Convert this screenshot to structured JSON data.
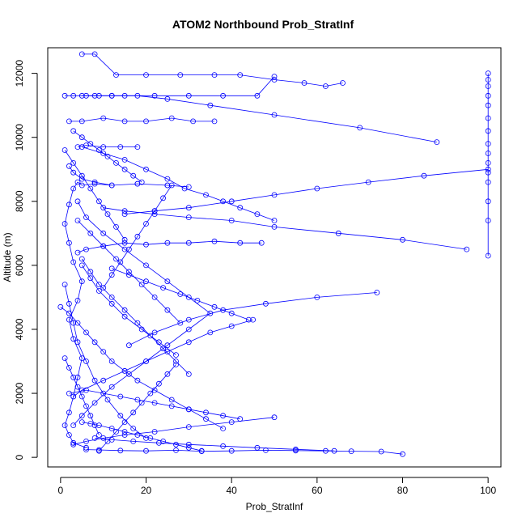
{
  "chart_data": {
    "type": "scatter",
    "title": "ATOM2 Northbound Prob_StratInf",
    "xlabel": "Prob_StratInf",
    "ylabel": "Altitude (m)",
    "xlim": [
      -3,
      103
    ],
    "ylim": [
      -300,
      12800
    ],
    "x_ticks": [
      0,
      20,
      40,
      60,
      80,
      100
    ],
    "y_ticks": [
      0,
      2000,
      4000,
      6000,
      8000,
      10000,
      12000
    ],
    "grid": false,
    "legend": "none",
    "color": "#0000ff",
    "marker": "open-circle",
    "connected": true,
    "series": [
      {
        "x": [
          80,
          75,
          68,
          62,
          55,
          48,
          40,
          33,
          27,
          20,
          14,
          9,
          6
        ],
        "y": [
          100,
          180,
          190,
          200,
          210,
          220,
          200,
          190,
          220,
          200,
          210,
          230,
          240
        ]
      },
      {
        "x": [
          6,
          3,
          2,
          1,
          2,
          3,
          4,
          5,
          3,
          2,
          4,
          5,
          3,
          2,
          1,
          2,
          3,
          4,
          5,
          8,
          12,
          18,
          25,
          30,
          25,
          18,
          12,
          8,
          5,
          3,
          2
        ],
        "y": [
          300,
          450,
          700,
          1000,
          1400,
          1900,
          2500,
          3100,
          3700,
          4300,
          4900,
          5500,
          6100,
          6700,
          7300,
          7900,
          8400,
          8600,
          8500,
          8550,
          8500,
          8550,
          8500,
          8450,
          8500,
          8550,
          8500,
          8600,
          8700,
          8900,
          9100
        ]
      },
      {
        "x": [
          3,
          5,
          8,
          12,
          16,
          20,
          25,
          30,
          35,
          30,
          25,
          20,
          15,
          10,
          6,
          4
        ],
        "y": [
          1000,
          1300,
          1700,
          2200,
          2600,
          3000,
          3500,
          4000,
          4500,
          5000,
          5500,
          6000,
          6500,
          7000,
          7500,
          8000
        ]
      },
      {
        "x": [
          5,
          10,
          15,
          20,
          25,
          29,
          34,
          38,
          42,
          46,
          50
        ],
        "y": [
          9700,
          9500,
          9300,
          9000,
          8700,
          8400,
          8200,
          8000,
          7800,
          7600,
          7400
        ]
      },
      {
        "x": [
          100,
          100,
          100,
          100,
          100,
          100,
          100,
          100,
          100,
          100,
          100,
          100,
          100,
          100,
          100
        ],
        "y": [
          6300,
          7400,
          8000,
          8600,
          8900,
          9200,
          9500,
          9800,
          10200,
          10600,
          11000,
          11300,
          11600,
          11800,
          12000
        ]
      },
      {
        "x": [
          1,
          3,
          6,
          9,
          12,
          15,
          22,
          30,
          38,
          46,
          50
        ],
        "y": [
          11300,
          11300,
          11300,
          11300,
          11300,
          11300,
          11300,
          11300,
          11300,
          11300,
          11900
        ]
      },
      {
        "x": [
          5,
          8,
          13,
          20,
          28,
          36,
          42,
          50,
          57,
          62,
          66
        ],
        "y": [
          12600,
          12600,
          11950,
          11950,
          11950,
          11950,
          11950,
          11800,
          11700,
          11600,
          11700
        ]
      },
      {
        "x": [
          2,
          5,
          10,
          15,
          20,
          26,
          31,
          36
        ],
        "y": [
          10500,
          10500,
          10600,
          10500,
          10500,
          10600,
          10500,
          10500
        ]
      },
      {
        "x": [
          4,
          6,
          10,
          14,
          18
        ],
        "y": [
          9700,
          9750,
          9700,
          9700,
          9700
        ]
      },
      {
        "x": [
          88,
          70,
          50,
          35,
          25,
          18,
          12,
          8,
          5
        ],
        "y": [
          9850,
          10300,
          10700,
          11000,
          11200,
          11300,
          11300,
          11300,
          11300
        ]
      },
      {
        "x": [
          95,
          80,
          65,
          50,
          40,
          30,
          22,
          15,
          10
        ],
        "y": [
          6500,
          6800,
          7000,
          7200,
          7400,
          7500,
          7600,
          7700,
          7800
        ]
      },
      {
        "x": [
          100,
          85,
          72,
          60,
          50,
          40,
          30,
          22,
          15
        ],
        "y": [
          9000,
          8800,
          8600,
          8400,
          8200,
          8000,
          7800,
          7700,
          7600
        ]
      },
      {
        "x": [
          74,
          60,
          48,
          38,
          30,
          22,
          16
        ],
        "y": [
          5150,
          5000,
          4800,
          4600,
          4300,
          3900,
          3500
        ]
      },
      {
        "x": [
          47,
          42,
          36,
          30,
          25,
          20,
          15,
          10,
          6,
          4
        ],
        "y": [
          6700,
          6700,
          6750,
          6700,
          6700,
          6650,
          6700,
          6600,
          6500,
          6400
        ]
      },
      {
        "x": [
          45,
          40,
          35,
          30,
          25,
          20,
          15,
          10,
          5,
          3
        ],
        "y": [
          4300,
          4100,
          3900,
          3600,
          3300,
          3000,
          2700,
          2400,
          2100,
          1900
        ]
      },
      {
        "x": [
          2,
          6,
          10,
          14,
          18,
          22,
          26,
          30,
          34,
          38,
          42
        ],
        "y": [
          2000,
          2100,
          2000,
          1900,
          1800,
          1700,
          1600,
          1500,
          1400,
          1300,
          1200
        ]
      },
      {
        "x": [
          50,
          40,
          30,
          22,
          15,
          10,
          6,
          3
        ],
        "y": [
          1250,
          1100,
          950,
          800,
          700,
          600,
          500,
          400
        ]
      },
      {
        "x": [
          0,
          2,
          4,
          6,
          8,
          10,
          12,
          15,
          18,
          22,
          26,
          30,
          34,
          38
        ],
        "y": [
          4700,
          4500,
          4200,
          3900,
          3600,
          3300,
          3000,
          2700,
          2400,
          2100,
          1800,
          1500,
          1200,
          900
        ]
      },
      {
        "x": [
          20,
          17,
          14,
          11,
          8,
          6,
          4,
          3,
          2,
          1
        ],
        "y": [
          600,
          900,
          1300,
          1800,
          2400,
          3000,
          3600,
          4200,
          4800,
          5400
        ]
      },
      {
        "x": [
          30,
          27,
          24,
          21,
          18,
          15,
          12,
          9,
          7,
          5
        ],
        "y": [
          2600,
          3000,
          3400,
          3800,
          4200,
          4600,
          5000,
          5400,
          5800,
          6200
        ]
      },
      {
        "x": [
          12,
          16,
          20,
          24,
          28,
          32,
          36,
          40,
          44
        ],
        "y": [
          5900,
          5700,
          5500,
          5300,
          5100,
          4900,
          4700,
          4500,
          4300
        ]
      },
      {
        "x": [
          26,
          24,
          22,
          20,
          18,
          16,
          14,
          12,
          10
        ],
        "y": [
          8500,
          8100,
          7700,
          7300,
          6900,
          6500,
          6100,
          5700,
          5300
        ]
      },
      {
        "x": [
          4,
          7,
          10,
          13,
          16,
          19,
          22,
          25,
          28
        ],
        "y": [
          7400,
          7000,
          6600,
          6200,
          5800,
          5400,
          5000,
          4600,
          4200
        ]
      },
      {
        "x": [
          9,
          11,
          13,
          15,
          17,
          19,
          21,
          23,
          25,
          27
        ],
        "y": [
          200,
          500,
          800,
          1100,
          1400,
          1700,
          2000,
          2300,
          2600,
          2900
        ]
      },
      {
        "x": [
          33,
          30,
          27,
          24,
          21,
          18,
          15,
          12,
          9,
          7,
          5
        ],
        "y": [
          200,
          300,
          400,
          500,
          600,
          700,
          800,
          900,
          1000,
          1050,
          1100
        ]
      },
      {
        "x": [
          64,
          55,
          46,
          38,
          30,
          23,
          17,
          12,
          8
        ],
        "y": [
          200,
          250,
          300,
          350,
          400,
          450,
          500,
          550,
          600
        ]
      },
      {
        "x": [
          1,
          3,
          5,
          7,
          9,
          11,
          13,
          15
        ],
        "y": [
          9600,
          9200,
          8800,
          8400,
          8000,
          7600,
          7200,
          6800
        ]
      },
      {
        "x": [
          3,
          5,
          7,
          9,
          11,
          13,
          15,
          17,
          19
        ],
        "y": [
          10200,
          10000,
          9800,
          9600,
          9400,
          9200,
          9000,
          8800,
          8600
        ]
      },
      {
        "x": [
          5,
          7,
          9,
          12,
          15,
          19,
          23,
          27
        ],
        "y": [
          6000,
          5600,
          5200,
          4800,
          4400,
          4000,
          3600,
          3200
        ]
      },
      {
        "x": [
          1,
          2,
          3,
          4,
          5,
          6,
          7,
          8,
          9
        ],
        "y": [
          3100,
          2800,
          2500,
          2200,
          1900,
          1600,
          1300,
          1000,
          700
        ]
      }
    ]
  }
}
